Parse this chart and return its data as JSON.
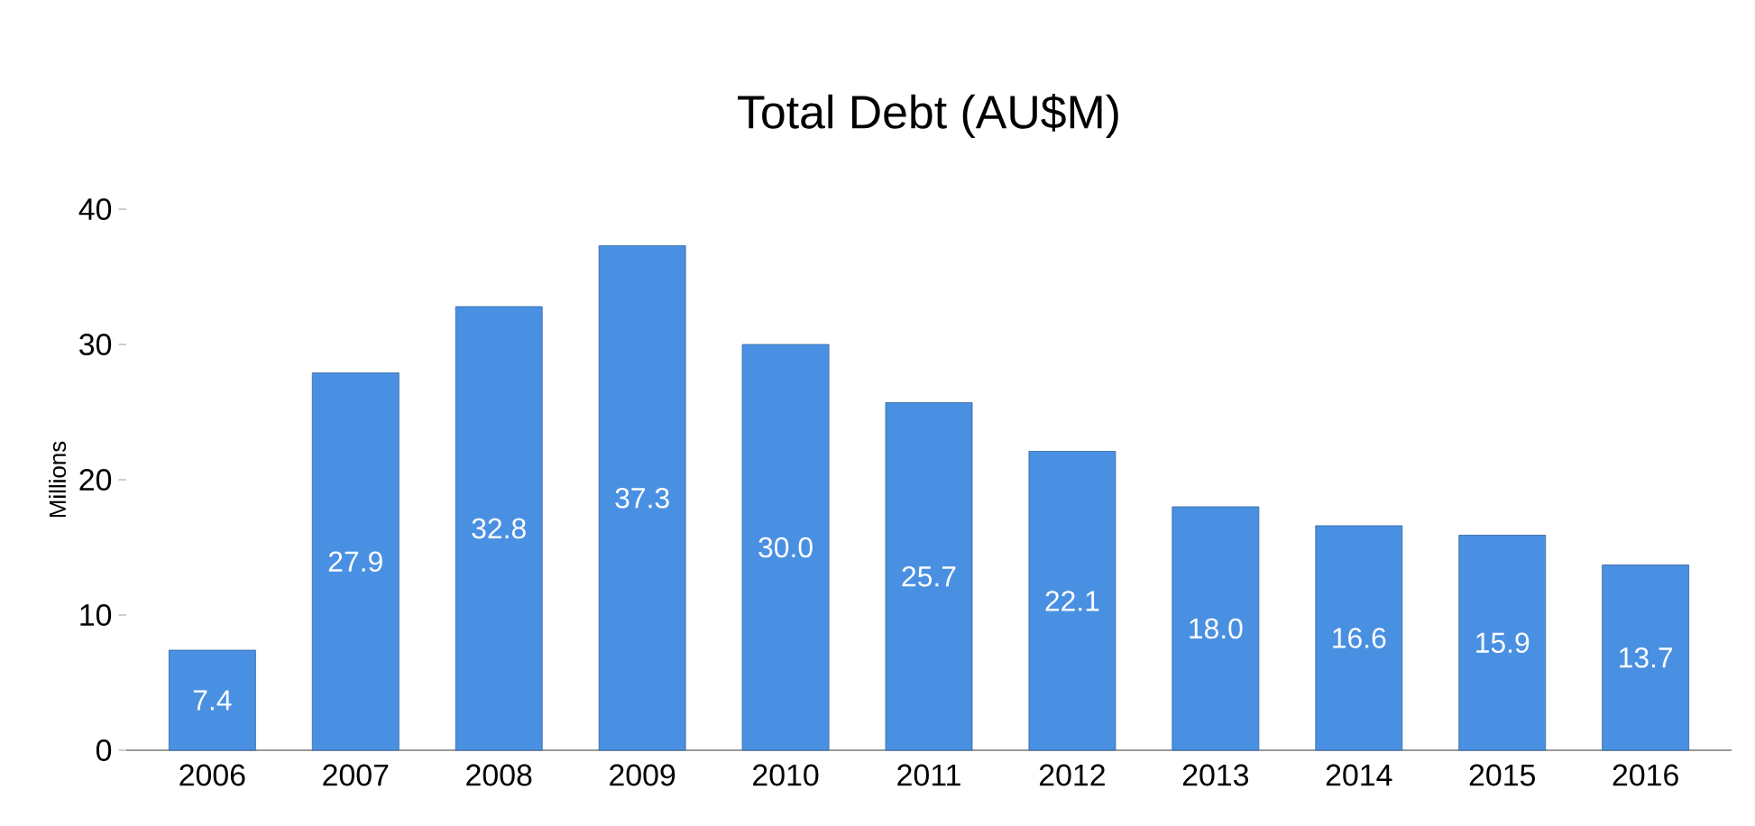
{
  "chart_data": {
    "type": "bar",
    "title": "Total Debt (AU$M)",
    "ylabel": "Millions",
    "categories": [
      "2006",
      "2007",
      "2008",
      "2009",
      "2010",
      "2011",
      "2012",
      "2013",
      "2014",
      "2015",
      "2016"
    ],
    "values": [
      7.4,
      27.9,
      32.8,
      37.3,
      30.0,
      25.7,
      22.1,
      18.0,
      16.6,
      15.9,
      13.7
    ],
    "value_labels": [
      "7.4",
      "27.9",
      "32.8",
      "37.3",
      "30.0",
      "25.7",
      "22.1",
      "18.0",
      "16.6",
      "15.9",
      "13.7"
    ],
    "color": "#4a90e2",
    "ylim": [
      0,
      40
    ],
    "yticks": [
      0,
      10,
      20,
      30,
      40
    ]
  }
}
